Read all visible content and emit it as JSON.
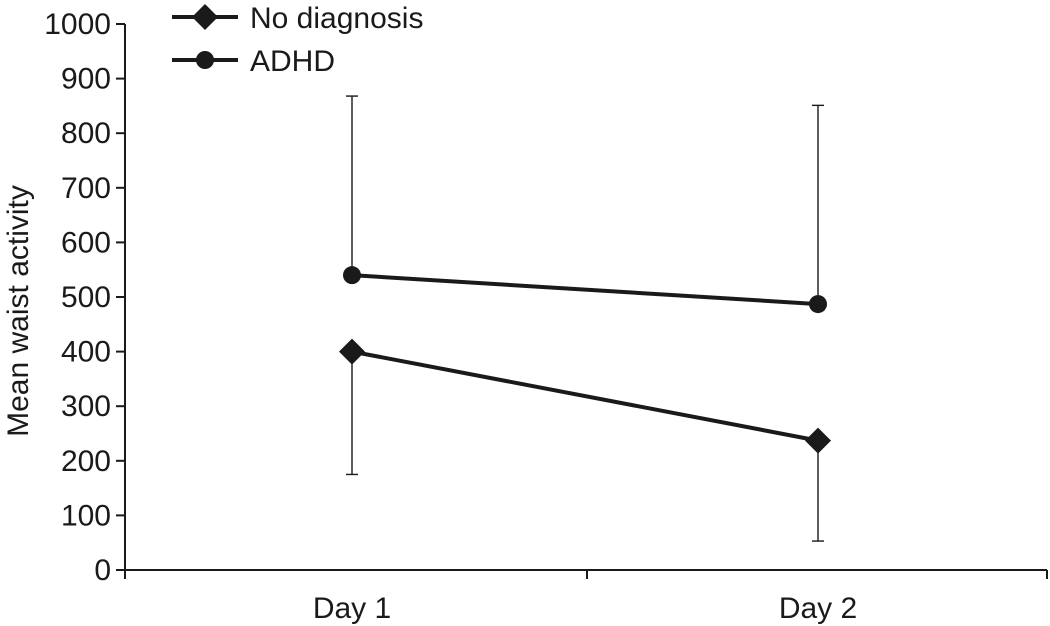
{
  "chart_data": {
    "type": "line",
    "categories": [
      "Day 1",
      "Day 2"
    ],
    "ylabel": "Mean waist activity",
    "xlabel": "",
    "ylim": [
      0,
      1000
    ],
    "yticks": [
      0,
      100,
      200,
      300,
      400,
      500,
      600,
      700,
      800,
      900,
      1000
    ],
    "grid": false,
    "legend_position": "top-left",
    "series": [
      {
        "name": "No diagnosis",
        "marker": "diamond",
        "values": [
          400,
          237
        ],
        "error_lower": [
          175,
          53
        ],
        "error_upper": [
          400,
          237
        ]
      },
      {
        "name": "ADHD",
        "marker": "circle",
        "values": [
          540,
          487
        ],
        "error_lower": [
          540,
          487
        ],
        "error_upper": [
          868,
          851
        ]
      }
    ],
    "colors": {
      "line": "#1a1a1a",
      "background": "#ffffff"
    }
  }
}
